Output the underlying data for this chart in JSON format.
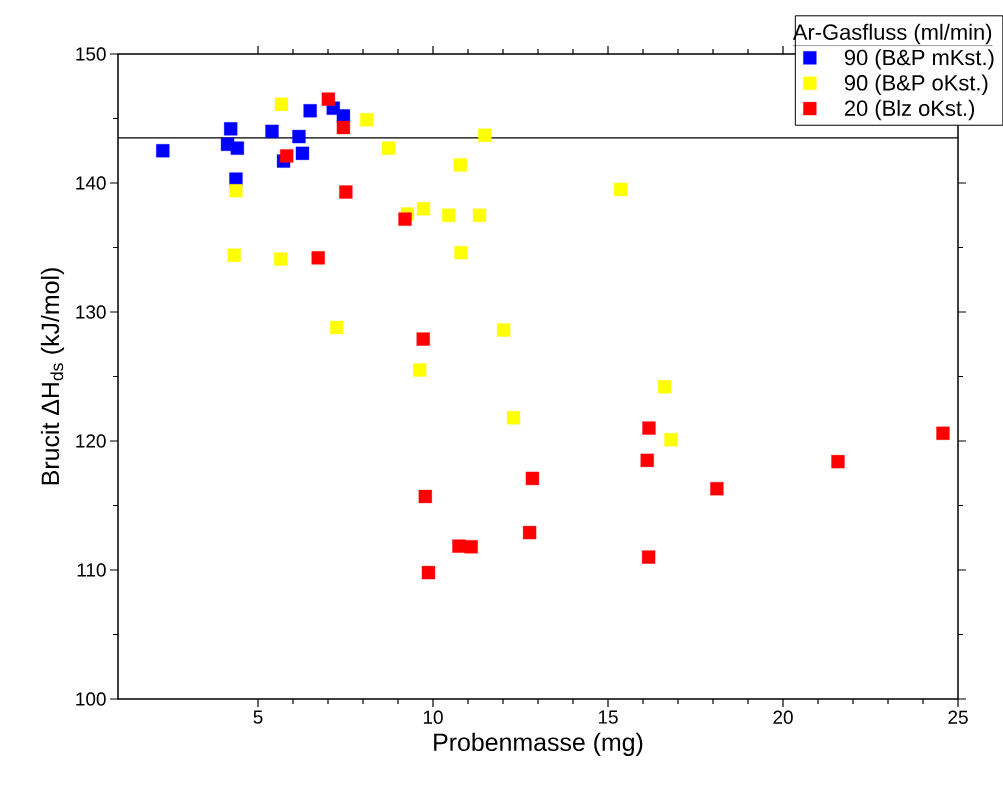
{
  "chart_data": {
    "type": "scatter",
    "xlabel": "Probenmasse (mg)",
    "ylabel": "Brucit  ΔH$_{ds}$ (kJ/mol)",
    "legend_title": "Ar-Gasfluss (ml/min)",
    "xlim": [
      1,
      25
    ],
    "ylim": [
      100,
      150
    ],
    "xticks": [
      5,
      10,
      15,
      20,
      25
    ],
    "yticks": [
      100,
      110,
      120,
      130,
      140,
      150
    ],
    "marker": "square",
    "legend": "top right",
    "ref_lines": [
      {
        "axis": "y",
        "value": 143.5,
        "color": "#000000"
      }
    ],
    "series": [
      {
        "name": "90 (B&P mKst.)",
        "color": "#0000ff",
        "x": [
          2.28,
          4.22,
          4.13,
          4.41,
          4.37,
          5.4,
          5.73,
          6.17,
          6.27,
          6.49,
          7.15,
          7.44
        ],
        "values": [
          142.5,
          144.2,
          143.0,
          142.7,
          140.3,
          144.0,
          141.7,
          143.6,
          142.3,
          145.6,
          145.8,
          145.2
        ]
      },
      {
        "name": "90 (B&P oKst.)",
        "color": "#ffff00",
        "x": [
          5.67,
          8.11,
          11.48,
          8.73,
          10.78,
          4.37,
          9.27,
          9.73,
          10.45,
          11.33,
          4.32,
          5.65,
          10.8,
          15.36,
          7.25,
          12.02,
          9.62,
          16.62,
          12.3,
          16.8
        ],
        "values": [
          146.1,
          144.9,
          143.7,
          142.7,
          141.4,
          139.4,
          137.6,
          138.0,
          137.5,
          137.5,
          134.4,
          134.1,
          134.6,
          139.5,
          128.8,
          128.6,
          125.5,
          124.2,
          121.8,
          120.1
        ]
      },
      {
        "name": "20 (Blz oKst.)",
        "color": "#ff0000",
        "x": [
          7.01,
          7.44,
          5.82,
          7.51,
          9.2,
          6.72,
          9.72,
          16.17,
          16.12,
          24.57,
          21.57,
          18.11,
          12.84,
          9.78,
          12.76,
          10.74,
          11.09,
          9.87,
          16.16
        ],
        "values": [
          146.5,
          144.3,
          142.1,
          139.3,
          137.2,
          134.2,
          127.9,
          121.0,
          118.5,
          120.6,
          118.4,
          116.3,
          117.1,
          115.7,
          112.9,
          111.85,
          111.8,
          109.8,
          111.0
        ]
      }
    ]
  }
}
